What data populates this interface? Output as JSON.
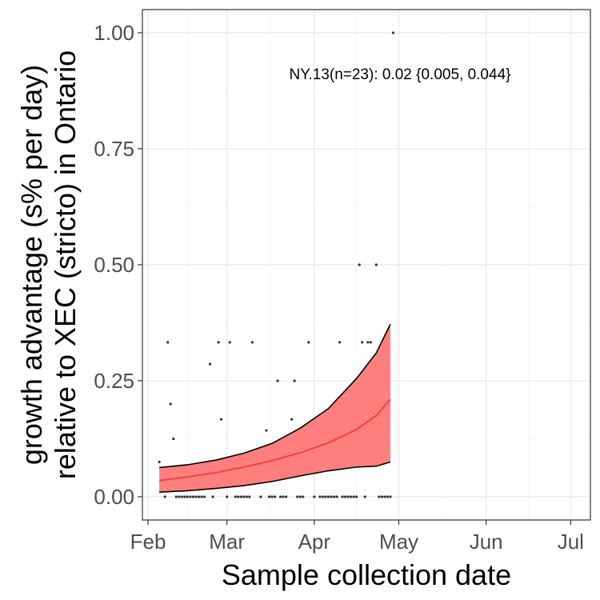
{
  "chart_data": {
    "type": "line",
    "title": "",
    "xlabel": "Sample collection date",
    "ylabel_line1": "growth advantage (s% per day)",
    "ylabel_line2": "relative to XEC (stricto) in Ontario",
    "annotation": "NY.13(n=23): 0.02 {0.005, 0.044}",
    "x_ticks": [
      "Feb",
      "Mar",
      "Apr",
      "May",
      "Jun",
      "Jul"
    ],
    "y_ticks": [
      "0.00",
      "0.25",
      "0.50",
      "0.75",
      "1.00"
    ],
    "ylim": [
      -0.05,
      1.05
    ],
    "xlim": [
      "2025-01-30",
      "2025-07-08"
    ],
    "grid": true,
    "colors": {
      "ribbon_fill": "#ff7f7f",
      "ribbon_edge": "#000000",
      "fit_line": "#f8403a",
      "points": "#333333",
      "grid_major": "#ebebeb",
      "grid_minor": "#f4f4f4",
      "panel_border": "#333333"
    },
    "fit": {
      "x": [
        "2025-02-05",
        "2025-02-15",
        "2025-02-25",
        "2025-03-07",
        "2025-03-17",
        "2025-03-27",
        "2025-04-06",
        "2025-04-16",
        "2025-04-23",
        "2025-04-28"
      ],
      "y": [
        0.035,
        0.043,
        0.052,
        0.064,
        0.078,
        0.095,
        0.116,
        0.145,
        0.175,
        0.21
      ],
      "lower": [
        0.01,
        0.013,
        0.018,
        0.024,
        0.033,
        0.045,
        0.056,
        0.064,
        0.066,
        0.075
      ],
      "upper": [
        0.063,
        0.069,
        0.079,
        0.094,
        0.115,
        0.148,
        0.19,
        0.255,
        0.31,
        0.372
      ]
    },
    "points": {
      "x": [
        "2025-02-05",
        "2025-02-08",
        "2025-02-09",
        "2025-02-10",
        "2025-02-23",
        "2025-02-26",
        "2025-02-27",
        "2025-03-02",
        "2025-03-10",
        "2025-03-15",
        "2025-03-19",
        "2025-03-24",
        "2025-03-25",
        "2025-03-30",
        "2025-04-10",
        "2025-04-17",
        "2025-04-18",
        "2025-04-20",
        "2025-04-21",
        "2025-04-23",
        "2025-04-29",
        "2025-02-07",
        "2025-02-11",
        "2025-02-12",
        "2025-02-13",
        "2025-02-14",
        "2025-02-15",
        "2025-02-16",
        "2025-02-17",
        "2025-02-18",
        "2025-02-19",
        "2025-02-20",
        "2025-02-21",
        "2025-02-24",
        "2025-03-01",
        "2025-03-04",
        "2025-03-05",
        "2025-03-06",
        "2025-03-07",
        "2025-03-08",
        "2025-03-09",
        "2025-03-13",
        "2025-03-16",
        "2025-03-17",
        "2025-03-18",
        "2025-03-20",
        "2025-03-21",
        "2025-03-22",
        "2025-03-26",
        "2025-03-27",
        "2025-03-28",
        "2025-04-01",
        "2025-04-03",
        "2025-04-04",
        "2025-04-05",
        "2025-04-06",
        "2025-04-07",
        "2025-04-08",
        "2025-04-09",
        "2025-04-11",
        "2025-04-12",
        "2025-04-13",
        "2025-04-14",
        "2025-04-15",
        "2025-04-16",
        "2025-04-19",
        "2025-04-24",
        "2025-04-25",
        "2025-04-26",
        "2025-04-27",
        "2025-04-28"
      ],
      "y": [
        0.075,
        0.333,
        0.2,
        0.125,
        0.286,
        0.333,
        0.167,
        0.333,
        0.333,
        0.143,
        0.25,
        0.167,
        0.25,
        0.333,
        0.333,
        0.5,
        0.333,
        0.333,
        0.333,
        0.5,
        1.0,
        0,
        0,
        0,
        0,
        0,
        0,
        0,
        0,
        0,
        0,
        0,
        0,
        0,
        0,
        0,
        0,
        0,
        0,
        0,
        0,
        0,
        0,
        0,
        0,
        0,
        0,
        0,
        0,
        0,
        0,
        0,
        0,
        0,
        0,
        0,
        0,
        0,
        0,
        0,
        0,
        0,
        0,
        0,
        0,
        0,
        0,
        0,
        0,
        0,
        0
      ]
    }
  }
}
